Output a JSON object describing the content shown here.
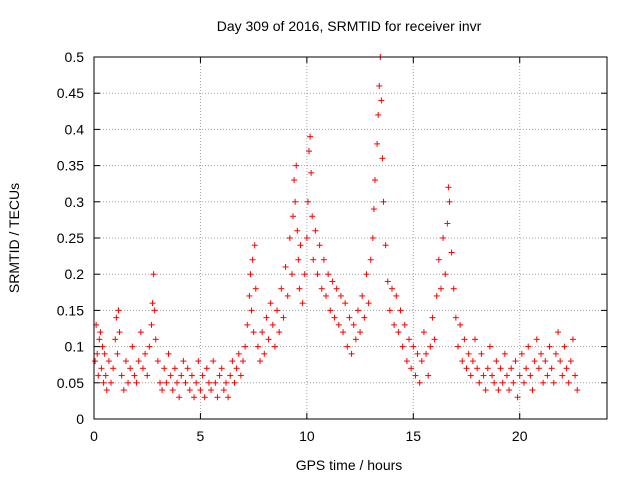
{
  "chart_data": {
    "type": "scatter",
    "title": "Day 309 of 2016, SRMTID for receiver invr",
    "xlabel": "GPS time / hours",
    "ylabel": "SRMTID / TECUs",
    "xlim": [
      0,
      24.1
    ],
    "ylim": [
      0,
      0.5
    ],
    "xticks": [
      0,
      5,
      10,
      15,
      20
    ],
    "xtick_labels": [
      "0",
      "5",
      "10",
      "15",
      "20"
    ],
    "yticks": [
      0,
      0.05,
      0.1,
      0.15,
      0.2,
      0.25,
      0.3,
      0.35,
      0.4,
      0.45,
      0.5
    ],
    "ytick_labels": [
      "0",
      "0.05",
      "0.1",
      "0.15",
      "0.2",
      "0.25",
      "0.3",
      "0.35",
      "0.4",
      "0.45",
      "0.5"
    ],
    "grid": true,
    "marker": "+",
    "color": "#ff0000",
    "series": [
      {
        "name": "SRMTID",
        "points": [
          [
            0.05,
            0.08
          ],
          [
            0.1,
            0.13
          ],
          [
            0.15,
            0.09
          ],
          [
            0.2,
            0.06
          ],
          [
            0.25,
            0.11
          ],
          [
            0.3,
            0.12
          ],
          [
            0.35,
            0.07
          ],
          [
            0.4,
            0.1
          ],
          [
            0.45,
            0.05
          ],
          [
            0.5,
            0.09
          ],
          [
            0.55,
            0.06
          ],
          [
            0.6,
            0.04
          ],
          [
            0.7,
            0.08
          ],
          [
            0.8,
            0.05
          ],
          [
            0.9,
            0.07
          ],
          [
            1.0,
            0.11
          ],
          [
            1.05,
            0.14
          ],
          [
            1.1,
            0.09
          ],
          [
            1.15,
            0.15
          ],
          [
            1.2,
            0.12
          ],
          [
            1.3,
            0.06
          ],
          [
            1.4,
            0.04
          ],
          [
            1.5,
            0.08
          ],
          [
            1.6,
            0.05
          ],
          [
            1.7,
            0.07
          ],
          [
            1.8,
            0.1
          ],
          [
            1.9,
            0.06
          ],
          [
            2.0,
            0.05
          ],
          [
            2.1,
            0.08
          ],
          [
            2.2,
            0.12
          ],
          [
            2.3,
            0.07
          ],
          [
            2.4,
            0.09
          ],
          [
            2.5,
            0.06
          ],
          [
            2.6,
            0.1
          ],
          [
            2.7,
            0.13
          ],
          [
            2.75,
            0.16
          ],
          [
            2.8,
            0.2
          ],
          [
            2.85,
            0.15
          ],
          [
            2.9,
            0.11
          ],
          [
            3.0,
            0.08
          ],
          [
            3.1,
            0.05
          ],
          [
            3.2,
            0.04
          ],
          [
            3.3,
            0.07
          ],
          [
            3.4,
            0.05
          ],
          [
            3.5,
            0.09
          ],
          [
            3.6,
            0.06
          ],
          [
            3.7,
            0.04
          ],
          [
            3.8,
            0.07
          ],
          [
            3.9,
            0.05
          ],
          [
            4.0,
            0.03
          ],
          [
            4.1,
            0.06
          ],
          [
            4.2,
            0.08
          ],
          [
            4.3,
            0.05
          ],
          [
            4.4,
            0.07
          ],
          [
            4.5,
            0.04
          ],
          [
            4.6,
            0.06
          ],
          [
            4.7,
            0.03
          ],
          [
            4.8,
            0.05
          ],
          [
            4.9,
            0.08
          ],
          [
            5.0,
            0.04
          ],
          [
            5.1,
            0.06
          ],
          [
            5.2,
            0.03
          ],
          [
            5.3,
            0.07
          ],
          [
            5.4,
            0.05
          ],
          [
            5.5,
            0.04
          ],
          [
            5.6,
            0.08
          ],
          [
            5.7,
            0.05
          ],
          [
            5.8,
            0.03
          ],
          [
            5.9,
            0.06
          ],
          [
            6.0,
            0.07
          ],
          [
            6.1,
            0.04
          ],
          [
            6.2,
            0.05
          ],
          [
            6.3,
            0.03
          ],
          [
            6.4,
            0.06
          ],
          [
            6.5,
            0.08
          ],
          [
            6.6,
            0.05
          ],
          [
            6.7,
            0.07
          ],
          [
            6.8,
            0.09
          ],
          [
            6.9,
            0.06
          ],
          [
            7.0,
            0.08
          ],
          [
            7.1,
            0.1
          ],
          [
            7.2,
            0.13
          ],
          [
            7.3,
            0.17
          ],
          [
            7.35,
            0.2
          ],
          [
            7.4,
            0.15
          ],
          [
            7.45,
            0.22
          ],
          [
            7.5,
            0.12
          ],
          [
            7.55,
            0.24
          ],
          [
            7.6,
            0.18
          ],
          [
            7.7,
            0.1
          ],
          [
            7.8,
            0.08
          ],
          [
            7.9,
            0.12
          ],
          [
            8.0,
            0.09
          ],
          [
            8.1,
            0.14
          ],
          [
            8.2,
            0.11
          ],
          [
            8.3,
            0.16
          ],
          [
            8.4,
            0.13
          ],
          [
            8.5,
            0.1
          ],
          [
            8.6,
            0.15
          ],
          [
            8.7,
            0.12
          ],
          [
            8.8,
            0.18
          ],
          [
            8.9,
            0.14
          ],
          [
            9.0,
            0.21
          ],
          [
            9.1,
            0.17
          ],
          [
            9.2,
            0.25
          ],
          [
            9.3,
            0.2
          ],
          [
            9.35,
            0.28
          ],
          [
            9.4,
            0.33
          ],
          [
            9.45,
            0.3
          ],
          [
            9.5,
            0.35
          ],
          [
            9.55,
            0.26
          ],
          [
            9.6,
            0.22
          ],
          [
            9.65,
            0.18
          ],
          [
            9.7,
            0.24
          ],
          [
            9.8,
            0.16
          ],
          [
            9.9,
            0.2
          ],
          [
            10.0,
            0.25
          ],
          [
            10.05,
            0.3
          ],
          [
            10.1,
            0.37
          ],
          [
            10.15,
            0.39
          ],
          [
            10.2,
            0.34
          ],
          [
            10.25,
            0.28
          ],
          [
            10.3,
            0.22
          ],
          [
            10.4,
            0.26
          ],
          [
            10.5,
            0.2
          ],
          [
            10.6,
            0.24
          ],
          [
            10.7,
            0.18
          ],
          [
            10.8,
            0.22
          ],
          [
            10.9,
            0.17
          ],
          [
            11.0,
            0.2
          ],
          [
            11.1,
            0.15
          ],
          [
            11.2,
            0.19
          ],
          [
            11.3,
            0.14
          ],
          [
            11.4,
            0.18
          ],
          [
            11.5,
            0.13
          ],
          [
            11.6,
            0.17
          ],
          [
            11.7,
            0.12
          ],
          [
            11.8,
            0.16
          ],
          [
            11.9,
            0.1
          ],
          [
            12.0,
            0.14
          ],
          [
            12.1,
            0.09
          ],
          [
            12.2,
            0.13
          ],
          [
            12.3,
            0.11
          ],
          [
            12.4,
            0.15
          ],
          [
            12.5,
            0.12
          ],
          [
            12.6,
            0.17
          ],
          [
            12.7,
            0.14
          ],
          [
            12.8,
            0.2
          ],
          [
            12.9,
            0.16
          ],
          [
            13.0,
            0.22
          ],
          [
            13.1,
            0.25
          ],
          [
            13.15,
            0.29
          ],
          [
            13.2,
            0.33
          ],
          [
            13.3,
            0.38
          ],
          [
            13.35,
            0.42
          ],
          [
            13.4,
            0.46
          ],
          [
            13.45,
            0.5
          ],
          [
            13.5,
            0.44
          ],
          [
            13.55,
            0.36
          ],
          [
            13.6,
            0.3
          ],
          [
            13.7,
            0.24
          ],
          [
            13.8,
            0.19
          ],
          [
            13.9,
            0.15
          ],
          [
            14.0,
            0.18
          ],
          [
            14.1,
            0.13
          ],
          [
            14.2,
            0.17
          ],
          [
            14.3,
            0.12
          ],
          [
            14.4,
            0.15
          ],
          [
            14.5,
            0.1
          ],
          [
            14.6,
            0.13
          ],
          [
            14.7,
            0.08
          ],
          [
            14.8,
            0.11
          ],
          [
            14.9,
            0.07
          ],
          [
            15.0,
            0.1
          ],
          [
            15.1,
            0.06
          ],
          [
            15.2,
            0.09
          ],
          [
            15.3,
            0.05
          ],
          [
            15.4,
            0.08
          ],
          [
            15.5,
            0.12
          ],
          [
            15.6,
            0.09
          ],
          [
            15.7,
            0.06
          ],
          [
            15.8,
            0.1
          ],
          [
            15.9,
            0.14
          ],
          [
            16.0,
            0.11
          ],
          [
            16.1,
            0.17
          ],
          [
            16.2,
            0.22
          ],
          [
            16.3,
            0.18
          ],
          [
            16.4,
            0.25
          ],
          [
            16.5,
            0.2
          ],
          [
            16.6,
            0.27
          ],
          [
            16.65,
            0.32
          ],
          [
            16.7,
            0.3
          ],
          [
            16.8,
            0.23
          ],
          [
            16.9,
            0.18
          ],
          [
            17.0,
            0.14
          ],
          [
            17.1,
            0.1
          ],
          [
            17.2,
            0.13
          ],
          [
            17.3,
            0.08
          ],
          [
            17.4,
            0.11
          ],
          [
            17.5,
            0.07
          ],
          [
            17.6,
            0.09
          ],
          [
            17.7,
            0.06
          ],
          [
            17.8,
            0.08
          ],
          [
            17.9,
            0.11
          ],
          [
            18.0,
            0.07
          ],
          [
            18.1,
            0.05
          ],
          [
            18.2,
            0.09
          ],
          [
            18.3,
            0.06
          ],
          [
            18.4,
            0.04
          ],
          [
            18.5,
            0.07
          ],
          [
            18.6,
            0.1
          ],
          [
            18.7,
            0.06
          ],
          [
            18.8,
            0.05
          ],
          [
            18.9,
            0.08
          ],
          [
            19.0,
            0.04
          ],
          [
            19.1,
            0.07
          ],
          [
            19.2,
            0.05
          ],
          [
            19.3,
            0.09
          ],
          [
            19.4,
            0.06
          ],
          [
            19.5,
            0.04
          ],
          [
            19.6,
            0.07
          ],
          [
            19.7,
            0.05
          ],
          [
            19.8,
            0.08
          ],
          [
            19.9,
            0.03
          ],
          [
            20.0,
            0.06
          ],
          [
            20.1,
            0.09
          ],
          [
            20.2,
            0.05
          ],
          [
            20.3,
            0.07
          ],
          [
            20.4,
            0.1
          ],
          [
            20.5,
            0.06
          ],
          [
            20.6,
            0.04
          ],
          [
            20.7,
            0.08
          ],
          [
            20.8,
            0.11
          ],
          [
            20.9,
            0.07
          ],
          [
            21.0,
            0.09
          ],
          [
            21.1,
            0.05
          ],
          [
            21.2,
            0.08
          ],
          [
            21.3,
            0.06
          ],
          [
            21.4,
            0.1
          ],
          [
            21.5,
            0.07
          ],
          [
            21.6,
            0.05
          ],
          [
            21.7,
            0.09
          ],
          [
            21.8,
            0.12
          ],
          [
            21.9,
            0.08
          ],
          [
            22.0,
            0.06
          ],
          [
            22.1,
            0.1
          ],
          [
            22.2,
            0.07
          ],
          [
            22.3,
            0.05
          ],
          [
            22.4,
            0.08
          ],
          [
            22.5,
            0.11
          ],
          [
            22.6,
            0.06
          ],
          [
            22.7,
            0.04
          ]
        ]
      }
    ]
  }
}
